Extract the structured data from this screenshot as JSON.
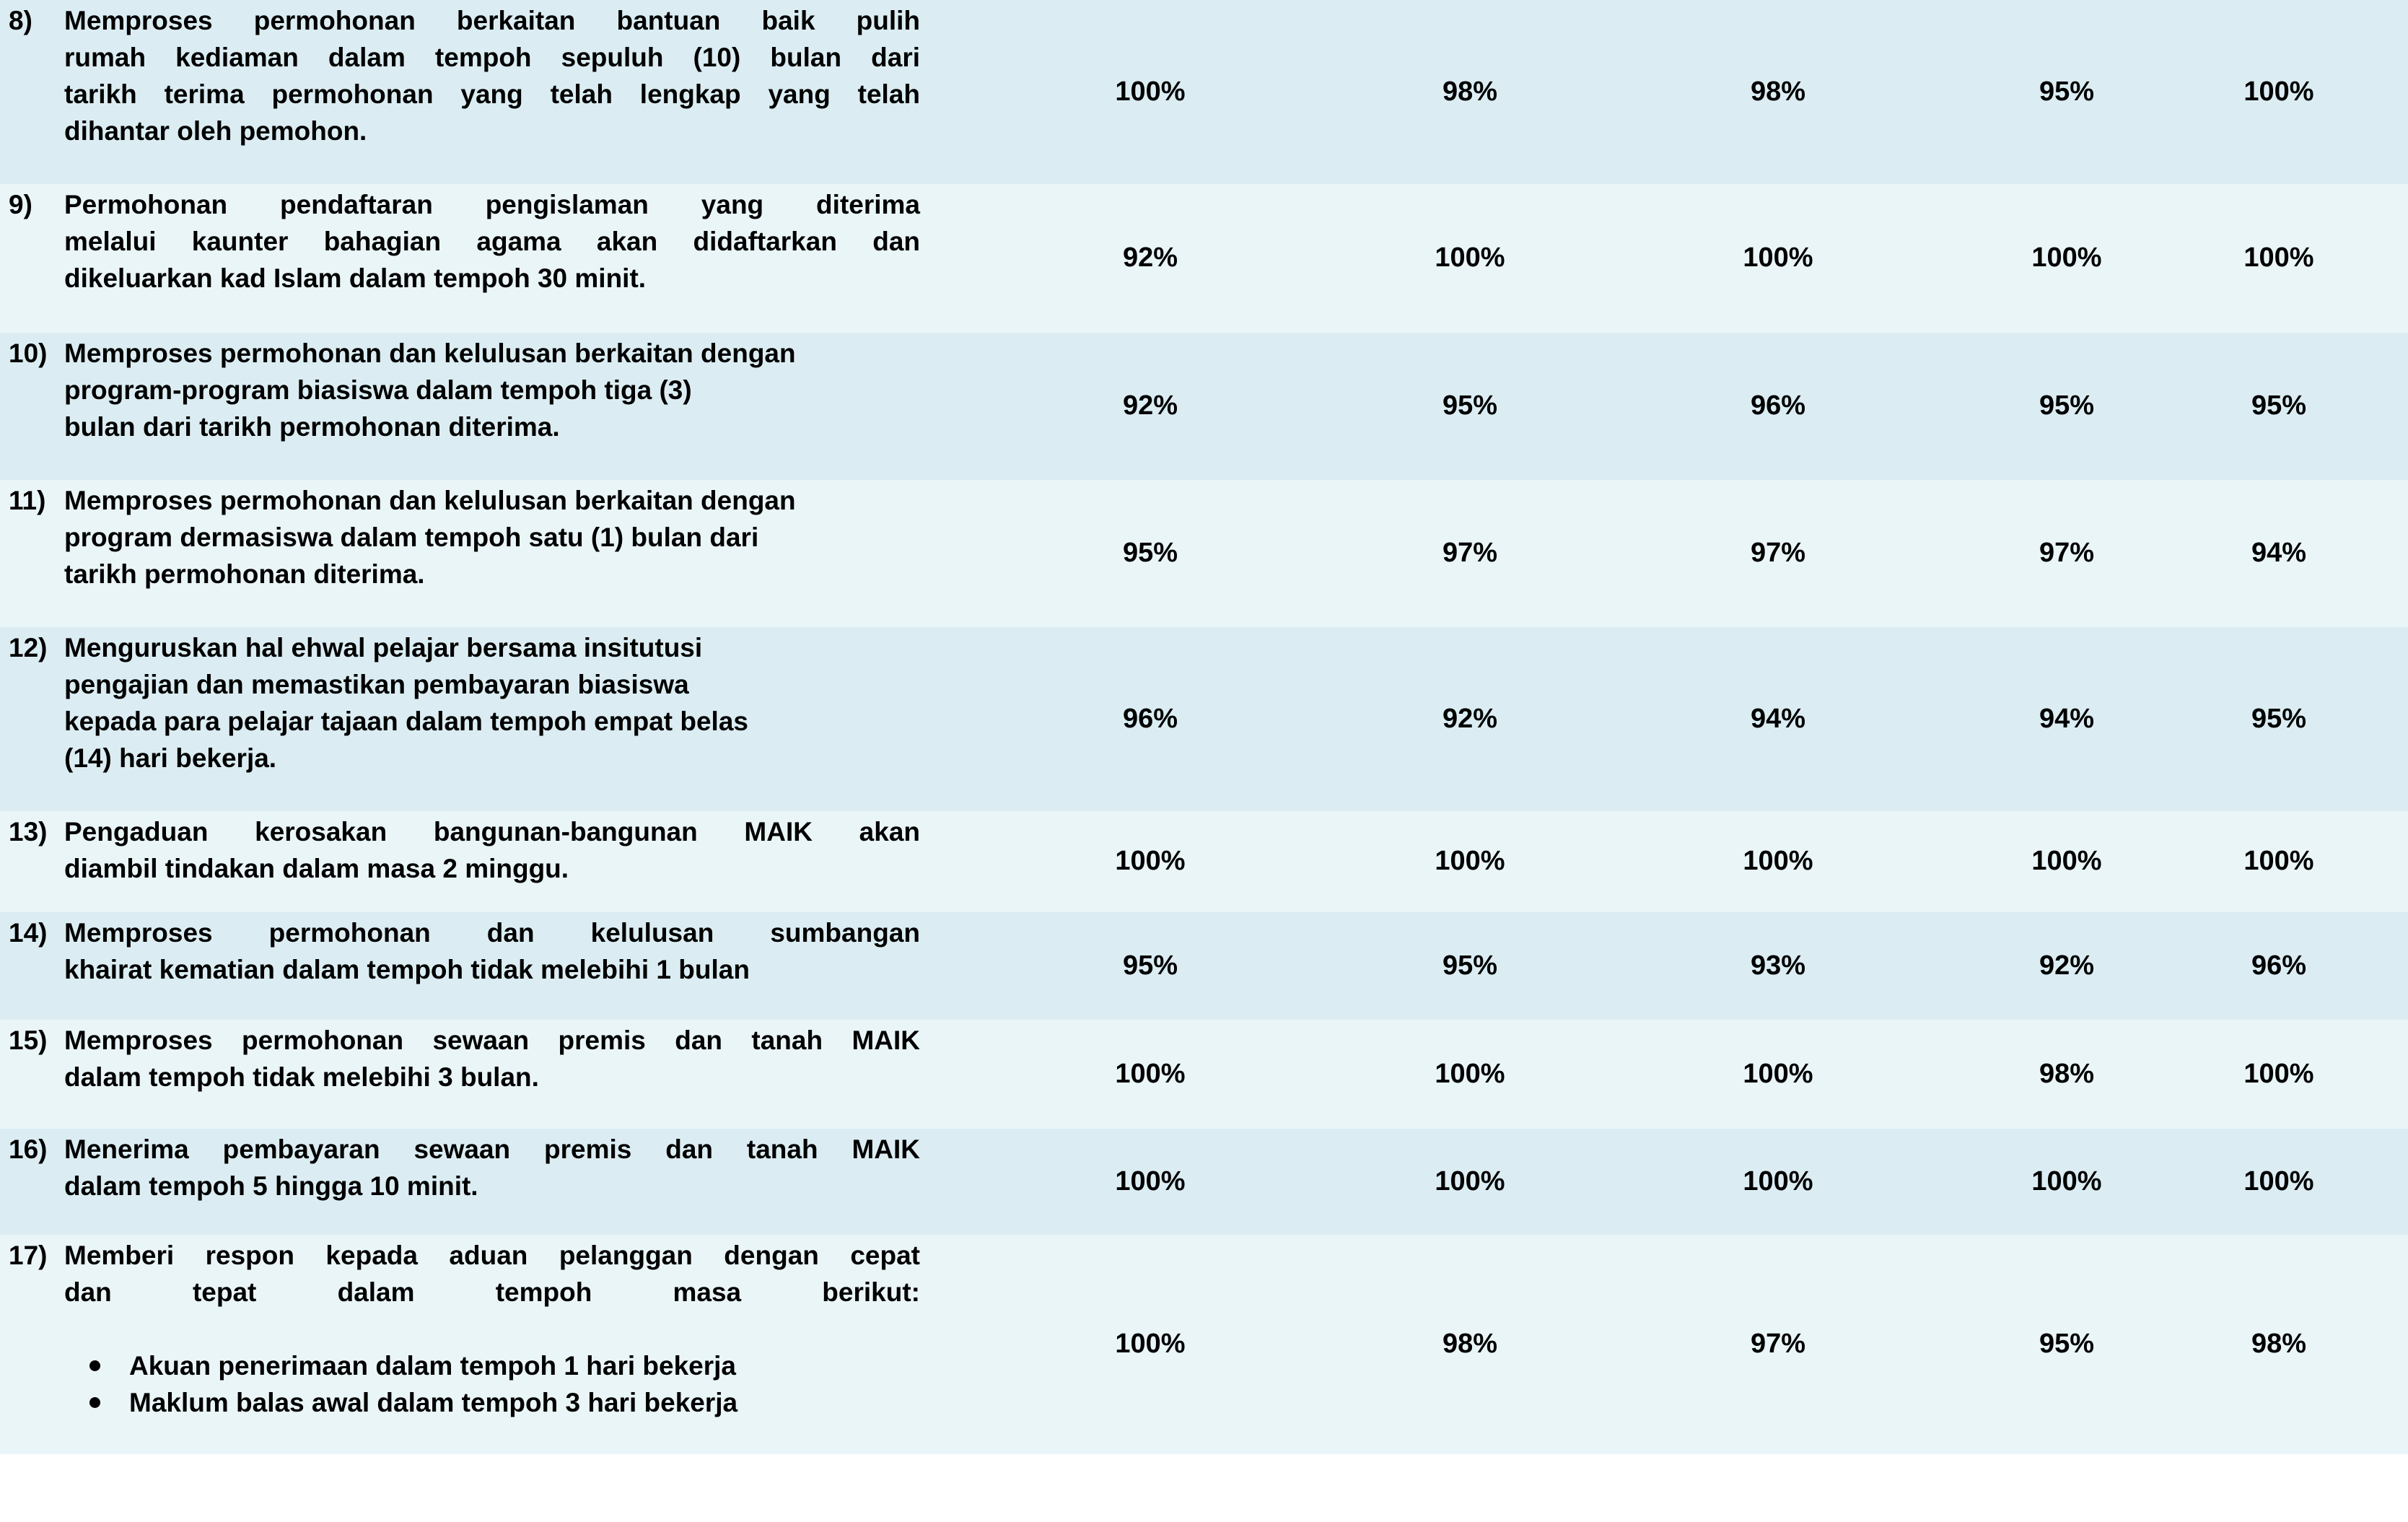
{
  "rows": [
    {
      "number": "8)",
      "lines": [
        "Memproses  permohonan berkaitan bantuan baik pulih",
        "rumah kediaman dalam tempoh sepuluh (10) bulan dari",
        "tarikh terima permohonan yang telah lengkap yang telah",
        "dihantar oleh pemohon."
      ],
      "values": [
        "100%",
        "98%",
        "98%",
        "95%",
        "100%"
      ]
    },
    {
      "number": "9)",
      "lines": [
        "Permohonan  pendaftaran pengislaman yang diterima",
        "melalui kaunter bahagian agama akan didaftarkan dan",
        "dikeluarkan kad Islam dalam tempoh 30 minit."
      ],
      "values": [
        "92%",
        "100%",
        "100%",
        "100%",
        "100%"
      ]
    },
    {
      "number": "10)",
      "lines": [
        "Memproses permohonan dan kelulusan berkaitan dengan",
        "program-program biasiswa dalam tempoh tiga (3)",
        "bulan dari tarikh permohonan diterima."
      ],
      "values": [
        "92%",
        "95%",
        "96%",
        "95%",
        "95%"
      ]
    },
    {
      "number": "11)",
      "lines": [
        "Memproses permohonan dan kelulusan berkaitan dengan",
        "program dermasiswa dalam tempoh satu (1) bulan dari",
        "tarikh permohonan diterima."
      ],
      "values": [
        "95%",
        "97%",
        "97%",
        "97%",
        "94%"
      ]
    },
    {
      "number": "12)",
      "lines": [
        "Menguruskan hal ehwal pelajar bersama insitutusi",
        "pengajian dan memastikan pembayaran biasiswa",
        "kepada para pelajar tajaan dalam tempoh empat belas",
        "(14) hari bekerja."
      ],
      "values": [
        "96%",
        "92%",
        "94%",
        "94%",
        "95%"
      ]
    },
    {
      "number": "13)",
      "lines": [
        "Pengaduan kerosakan bangunan-bangunan MAIK akan",
        "diambil tindakan dalam masa 2 minggu."
      ],
      "values": [
        "100%",
        "100%",
        "100%",
        "100%",
        "100%"
      ]
    },
    {
      "number": "14)",
      "lines": [
        "Memproses permohonan dan kelulusan sumbangan",
        "khairat kematian dalam tempoh tidak melebihi 1 bulan"
      ],
      "values": [
        "95%",
        "95%",
        "93%",
        "92%",
        "96%"
      ]
    },
    {
      "number": "15)",
      "lines": [
        "Memproses  permohonan sewaan premis dan tanah MAIK",
        "dalam tempoh tidak melebihi 3 bulan."
      ],
      "values": [
        "100%",
        "100%",
        "100%",
        "98%",
        "100%"
      ]
    },
    {
      "number": "16)",
      "lines": [
        "Menerima pembayaran sewaan premis dan tanah MAIK",
        "dalam tempoh 5 hingga 10 minit."
      ],
      "values": [
        "100%",
        "100%",
        "100%",
        "100%",
        "100%"
      ]
    },
    {
      "number": "17)",
      "lines": [
        "Memberi respon kepada aduan pelanggan dengan cepat",
        "dan tepat dalam tempoh masa berikut:"
      ],
      "bullets": [
        "Akuan penerimaan dalam tempoh 1 hari bekerja",
        "Maklum balas awal dalam tempoh 3 hari bekerja"
      ],
      "values": [
        "100%",
        "98%",
        "97%",
        "95%",
        "98%"
      ]
    }
  ]
}
